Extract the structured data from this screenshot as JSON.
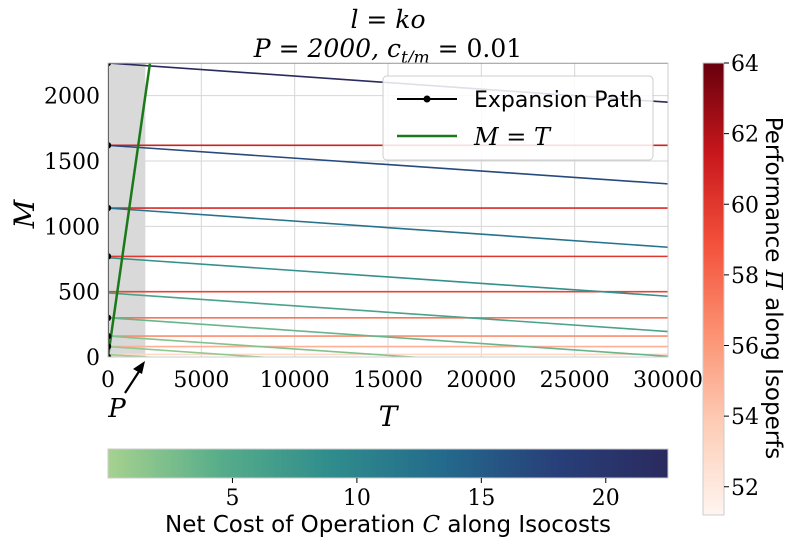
{
  "chart_data": {
    "type": "line",
    "title_line1": "l = ko",
    "title_line2_prefix": "P = 2000, c",
    "title_line2_sub": "t/m",
    "title_line2_suffix": " = 0.01",
    "xlabel": "T",
    "ylabel": "M",
    "xlim": [
      0,
      30000
    ],
    "ylim": [
      0,
      2250
    ],
    "xticks": [
      0,
      5000,
      10000,
      15000,
      20000,
      25000,
      30000
    ],
    "yticks": [
      0,
      500,
      1000,
      1500,
      2000
    ],
    "grid": true,
    "shaded_region": {
      "x_from": 0,
      "x_to": 2000,
      "color": "#d9d9d9"
    },
    "annotation": {
      "text": "P",
      "points_to": [
        2000,
        0
      ]
    },
    "legend": {
      "position": "top-right",
      "entries": [
        {
          "label": "Expansion Path",
          "color": "#000000",
          "marker": "dot"
        },
        {
          "label": "M = T",
          "color": "#1a7a1a",
          "marker": "none"
        }
      ]
    },
    "expansion_path_points": [
      {
        "x": 0,
        "y": 0
      },
      {
        "x": 0,
        "y": 80
      },
      {
        "x": 0,
        "y": 160
      },
      {
        "x": 0,
        "y": 300
      },
      {
        "x": 0,
        "y": 770
      },
      {
        "x": 0,
        "y": 1140
      },
      {
        "x": 0,
        "y": 1620
      },
      {
        "x": 0,
        "y": 2250
      }
    ],
    "identity_line": {
      "x": [
        0,
        2250
      ],
      "y": [
        0,
        2250
      ]
    },
    "isoperfs": [
      {
        "y": 2250,
        "value": 64.0
      },
      {
        "y": 1620,
        "value": 61.0
      },
      {
        "y": 1140,
        "value": 60.5
      },
      {
        "y": 770,
        "value": 60.0
      },
      {
        "y": 500,
        "value": 59.5
      },
      {
        "y": 300,
        "value": 57.5
      },
      {
        "y": 160,
        "value": 56.5
      },
      {
        "y": 80,
        "value": 55.0
      },
      {
        "y": 20,
        "value": 53.0
      }
    ],
    "isocosts": [
      {
        "y0": 2250,
        "y1": 1950,
        "value": 22.5
      },
      {
        "y0": 1620,
        "y1": 1325,
        "value": 17.0
      },
      {
        "y0": 1140,
        "y1": 840,
        "value": 12.5
      },
      {
        "y0": 760,
        "y1": 465,
        "value": 8.5
      },
      {
        "y0": 490,
        "y1": 195,
        "value": 6.0
      },
      {
        "y0": 300,
        "y1": 5,
        "value": 3.5
      },
      {
        "y0": 160,
        "y1": -135,
        "value": 2.0
      },
      {
        "y0": 80,
        "y1": -215,
        "value": 1.2
      },
      {
        "y0": 20,
        "y1": -275,
        "value": 0.5
      }
    ],
    "colorbar_cost": {
      "label_prefix": "Net Cost of Operation ",
      "label_var": "C",
      "label_suffix": " along Isocosts",
      "range": [
        0,
        22.5
      ],
      "ticks": [
        5,
        10,
        15,
        20
      ],
      "colors": [
        "#a6d28f",
        "#57ad8a",
        "#2f8c8c",
        "#236a8c",
        "#283f79",
        "#2a2a5e"
      ]
    },
    "colorbar_perf": {
      "label_prefix": "Performance ",
      "label_var": "Π",
      "label_suffix": " along Isoperfs",
      "range": [
        51.2,
        64.0
      ],
      "ticks": [
        52,
        54,
        56,
        58,
        60,
        62,
        64
      ],
      "colors": [
        "#fff5f0",
        "#fdcdb7",
        "#fc9272",
        "#f3513b",
        "#c8171c",
        "#67000d"
      ]
    }
  }
}
